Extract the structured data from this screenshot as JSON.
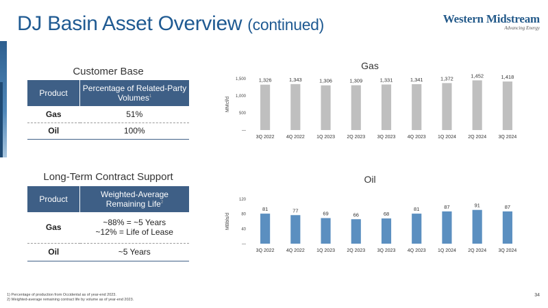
{
  "title": {
    "main": "DJ Basin Asset Overview",
    "sub": "(continued)"
  },
  "logo": {
    "name": "Western Midstream",
    "tagline": "Advancing Energy"
  },
  "customer_base": {
    "heading": "Customer Base",
    "col1": "Product",
    "col2": "Percentage of Related-Party Volumes",
    "col2_sup": "1",
    "rows": [
      {
        "product": "Gas",
        "value": "51%"
      },
      {
        "product": "Oil",
        "value": "100%"
      }
    ]
  },
  "contract_support": {
    "heading": "Long-Term Contract Support",
    "col1": "Product",
    "col2": "Weighted-Average Remaining Life",
    "col2_sup": "2",
    "rows": [
      {
        "product": "Gas",
        "line1": "~88% = ~5 Years",
        "line2": "~12% = Life of Lease"
      },
      {
        "product": "Oil",
        "line1": "~5 Years",
        "line2": ""
      }
    ]
  },
  "chart_data": [
    {
      "type": "bar",
      "title": "Gas",
      "ylabel": "MMcf/d",
      "xlabel": "",
      "categories": [
        "3Q 2022",
        "4Q 2022",
        "1Q 2023",
        "2Q 2023",
        "3Q 2023",
        "4Q 2023",
        "1Q 2024",
        "2Q 2024",
        "3Q 2024"
      ],
      "values": [
        1326,
        1343,
        1306,
        1309,
        1331,
        1341,
        1372,
        1452,
        1418
      ],
      "value_labels": [
        "1,326",
        "1,343",
        "1,306",
        "1,309",
        "1,331",
        "1,341",
        "1,372",
        "1,452",
        "1,418"
      ],
      "ylim": [
        0,
        1500
      ],
      "yticks": [
        0,
        500,
        1000,
        1500
      ],
      "ytick_labels": [
        "—",
        "500",
        "1,000",
        "1,500"
      ],
      "color": "#bfbfbf",
      "grid": false
    },
    {
      "type": "bar",
      "title": "Oil",
      "ylabel": "MBbls/d",
      "xlabel": "",
      "categories": [
        "3Q 2022",
        "4Q 2022",
        "1Q 2023",
        "2Q 2023",
        "3Q 2023",
        "4Q 2023",
        "1Q 2024",
        "2Q 2024",
        "3Q 2024"
      ],
      "values": [
        81,
        77,
        69,
        66,
        68,
        81,
        87,
        91,
        87
      ],
      "value_labels": [
        "81",
        "77",
        "69",
        "66",
        "68",
        "81",
        "87",
        "91",
        "87"
      ],
      "ylim": [
        0,
        120
      ],
      "yticks": [
        0,
        40,
        80,
        120
      ],
      "ytick_labels": [
        "—",
        "40",
        "80",
        "120"
      ],
      "color": "#5b8fc0",
      "grid": false
    }
  ],
  "footnotes": [
    "1)  Percentage of production from Occidental as of year-end 2023.",
    "2)  Weighted-average remaining contract life by volume as of year-end 2023."
  ],
  "page_number": "34"
}
